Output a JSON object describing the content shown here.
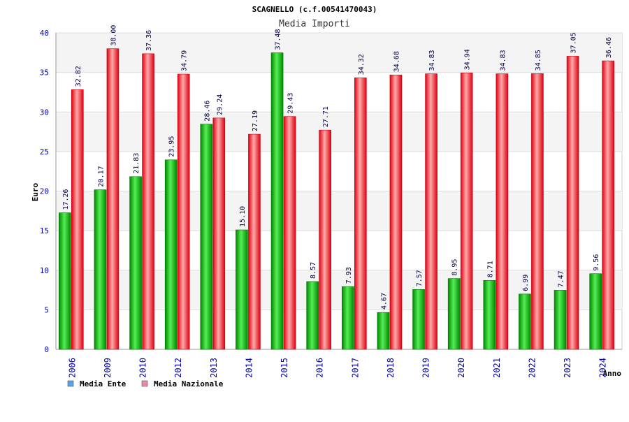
{
  "colors": {
    "series_green": "#22bb22",
    "series_red": "#ee2222",
    "legend_green_swatch": "#5ba3e8",
    "legend_red_swatch": "#e88aab",
    "tick_text": "#0000aa",
    "band_fill": "#f4f4f4"
  },
  "chart_data": {
    "type": "bar",
    "title": "SCAGNELLO (c.f.00541470043)",
    "subtitle": "Media Importi",
    "xlabel": "Anno",
    "ylabel": "Euro",
    "ylim": [
      0,
      40
    ],
    "yticks": [
      0,
      5,
      10,
      15,
      20,
      25,
      30,
      35,
      40
    ],
    "grid": true,
    "legend_position": "bottom-left",
    "categories": [
      "2006",
      "2009",
      "2010",
      "2012",
      "2013",
      "2014",
      "2015",
      "2016",
      "2017",
      "2018",
      "2019",
      "2020",
      "2021",
      "2022",
      "2023",
      "2024"
    ],
    "series": [
      {
        "name": "Media Ente",
        "values": [
          17.26,
          20.17,
          21.83,
          23.95,
          28.46,
          15.1,
          37.48,
          8.57,
          7.93,
          4.67,
          7.57,
          8.95,
          8.71,
          6.99,
          7.47,
          9.56
        ],
        "labels": [
          "17.26",
          "20.17",
          "21.83",
          "23.95",
          "28.46",
          "15.10",
          "37.48",
          "8.57",
          "7.93",
          "4.67",
          "7.57",
          "8.95",
          "8.71",
          "6.99",
          "7.47",
          "9.56"
        ]
      },
      {
        "name": "Media Nazionale",
        "values": [
          32.82,
          38.0,
          37.36,
          34.79,
          29.24,
          27.19,
          29.43,
          27.71,
          34.32,
          34.68,
          34.83,
          34.94,
          34.83,
          34.85,
          37.05,
          36.46
        ],
        "labels": [
          "32.82",
          "38.00",
          "37.36",
          "34.79",
          "29.24",
          "27.19",
          "29.43",
          "27.71",
          "34.32",
          "34.68",
          "34.83",
          "34.94",
          "34.83",
          "34.85",
          "37.05",
          "36.46"
        ]
      }
    ]
  }
}
